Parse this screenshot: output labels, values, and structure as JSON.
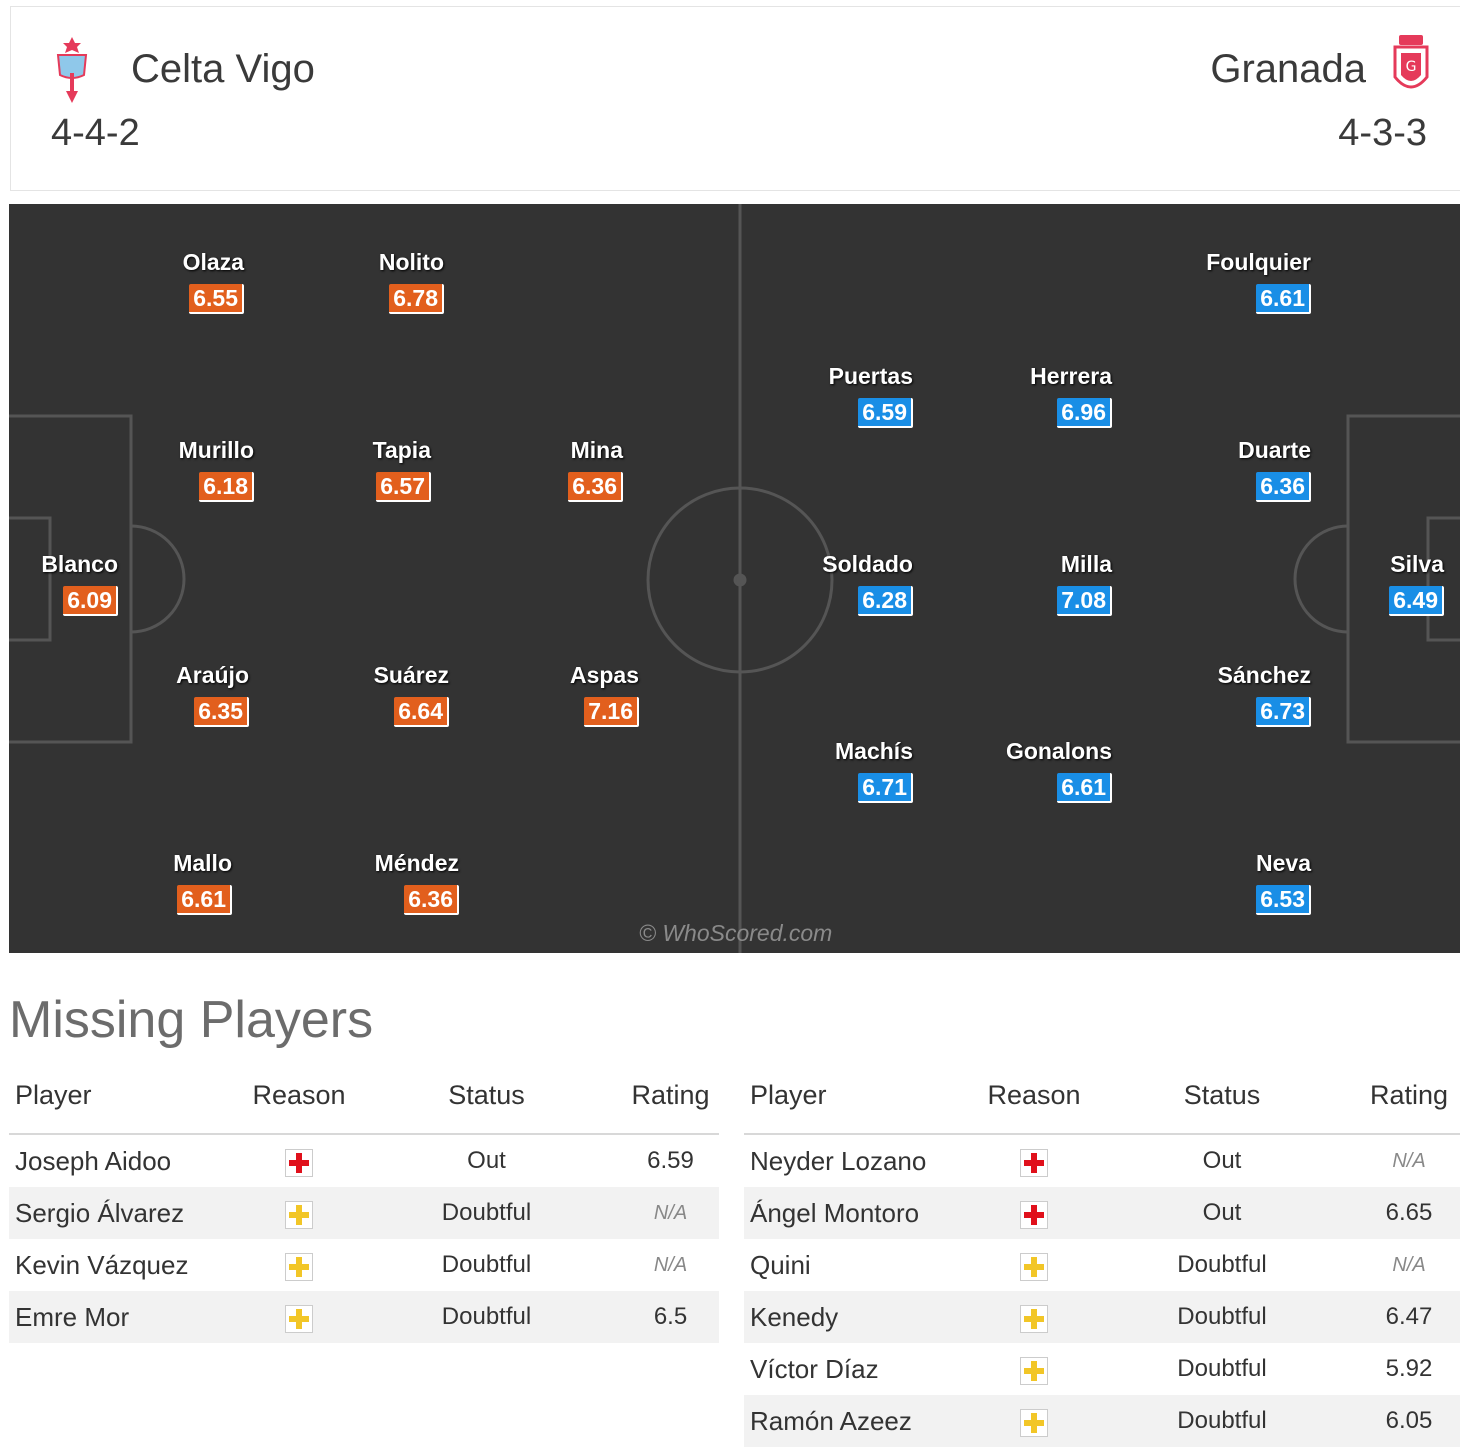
{
  "header": {
    "home": {
      "name": "Celta Vigo",
      "formation": "4-4-2"
    },
    "away": {
      "name": "Granada",
      "formation": "4-3-3"
    }
  },
  "pitch": {
    "watermark": "© WhoScored.com",
    "home": [
      {
        "name": "Olaza",
        "rating": "6.55"
      },
      {
        "name": "Nolito",
        "rating": "6.78"
      },
      {
        "name": "Murillo",
        "rating": "6.18"
      },
      {
        "name": "Tapia",
        "rating": "6.57"
      },
      {
        "name": "Mina",
        "rating": "6.36"
      },
      {
        "name": "Blanco",
        "rating": "6.09"
      },
      {
        "name": "Araújo",
        "rating": "6.35"
      },
      {
        "name": "Suárez",
        "rating": "6.64"
      },
      {
        "name": "Aspas",
        "rating": "7.16"
      },
      {
        "name": "Mallo",
        "rating": "6.61"
      },
      {
        "name": "Méndez",
        "rating": "6.36"
      }
    ],
    "away": [
      {
        "name": "Foulquier",
        "rating": "6.61"
      },
      {
        "name": "Puertas",
        "rating": "6.59"
      },
      {
        "name": "Herrera",
        "rating": "6.96"
      },
      {
        "name": "Duarte",
        "rating": "6.36"
      },
      {
        "name": "Soldado",
        "rating": "6.28"
      },
      {
        "name": "Milla",
        "rating": "7.08"
      },
      {
        "name": "Silva",
        "rating": "6.49"
      },
      {
        "name": "Sánchez",
        "rating": "6.73"
      },
      {
        "name": "Machís",
        "rating": "6.71"
      },
      {
        "name": "Gonalons",
        "rating": "6.61"
      },
      {
        "name": "Neva",
        "rating": "6.53"
      }
    ]
  },
  "missing": {
    "title": "Missing Players",
    "columns": {
      "player": "Player",
      "reason": "Reason",
      "status": "Status",
      "rating": "Rating"
    },
    "colors": {
      "injury": "#e0101b",
      "doubtful": "#f2c627",
      "rating": "#e25f1d"
    },
    "home": [
      {
        "player": "Joseph Aidoo",
        "reason": "red-cross-icon",
        "status": "Out",
        "rating": "6.59"
      },
      {
        "player": "Sergio Álvarez",
        "reason": "yellow-cross-icon",
        "status": "Doubtful",
        "rating": "N/A"
      },
      {
        "player": "Kevin Vázquez",
        "reason": "yellow-cross-icon",
        "status": "Doubtful",
        "rating": "N/A"
      },
      {
        "player": "Emre Mor",
        "reason": "yellow-cross-icon",
        "status": "Doubtful",
        "rating": "6.5"
      }
    ],
    "away": [
      {
        "player": "Neyder Lozano",
        "reason": "red-cross-icon",
        "status": "Out",
        "rating": "N/A"
      },
      {
        "player": "Ángel Montoro",
        "reason": "red-cross-icon",
        "status": "Out",
        "rating": "6.65"
      },
      {
        "player": "Quini",
        "reason": "yellow-cross-icon",
        "status": "Doubtful",
        "rating": "N/A"
      },
      {
        "player": "Kenedy",
        "reason": "yellow-cross-icon",
        "status": "Doubtful",
        "rating": "6.47"
      },
      {
        "player": "Víctor Díaz",
        "reason": "yellow-cross-icon",
        "status": "Doubtful",
        "rating": "5.92"
      },
      {
        "player": "Ramón Azeez",
        "reason": "yellow-cross-icon",
        "status": "Doubtful",
        "rating": "6.05"
      }
    ]
  }
}
